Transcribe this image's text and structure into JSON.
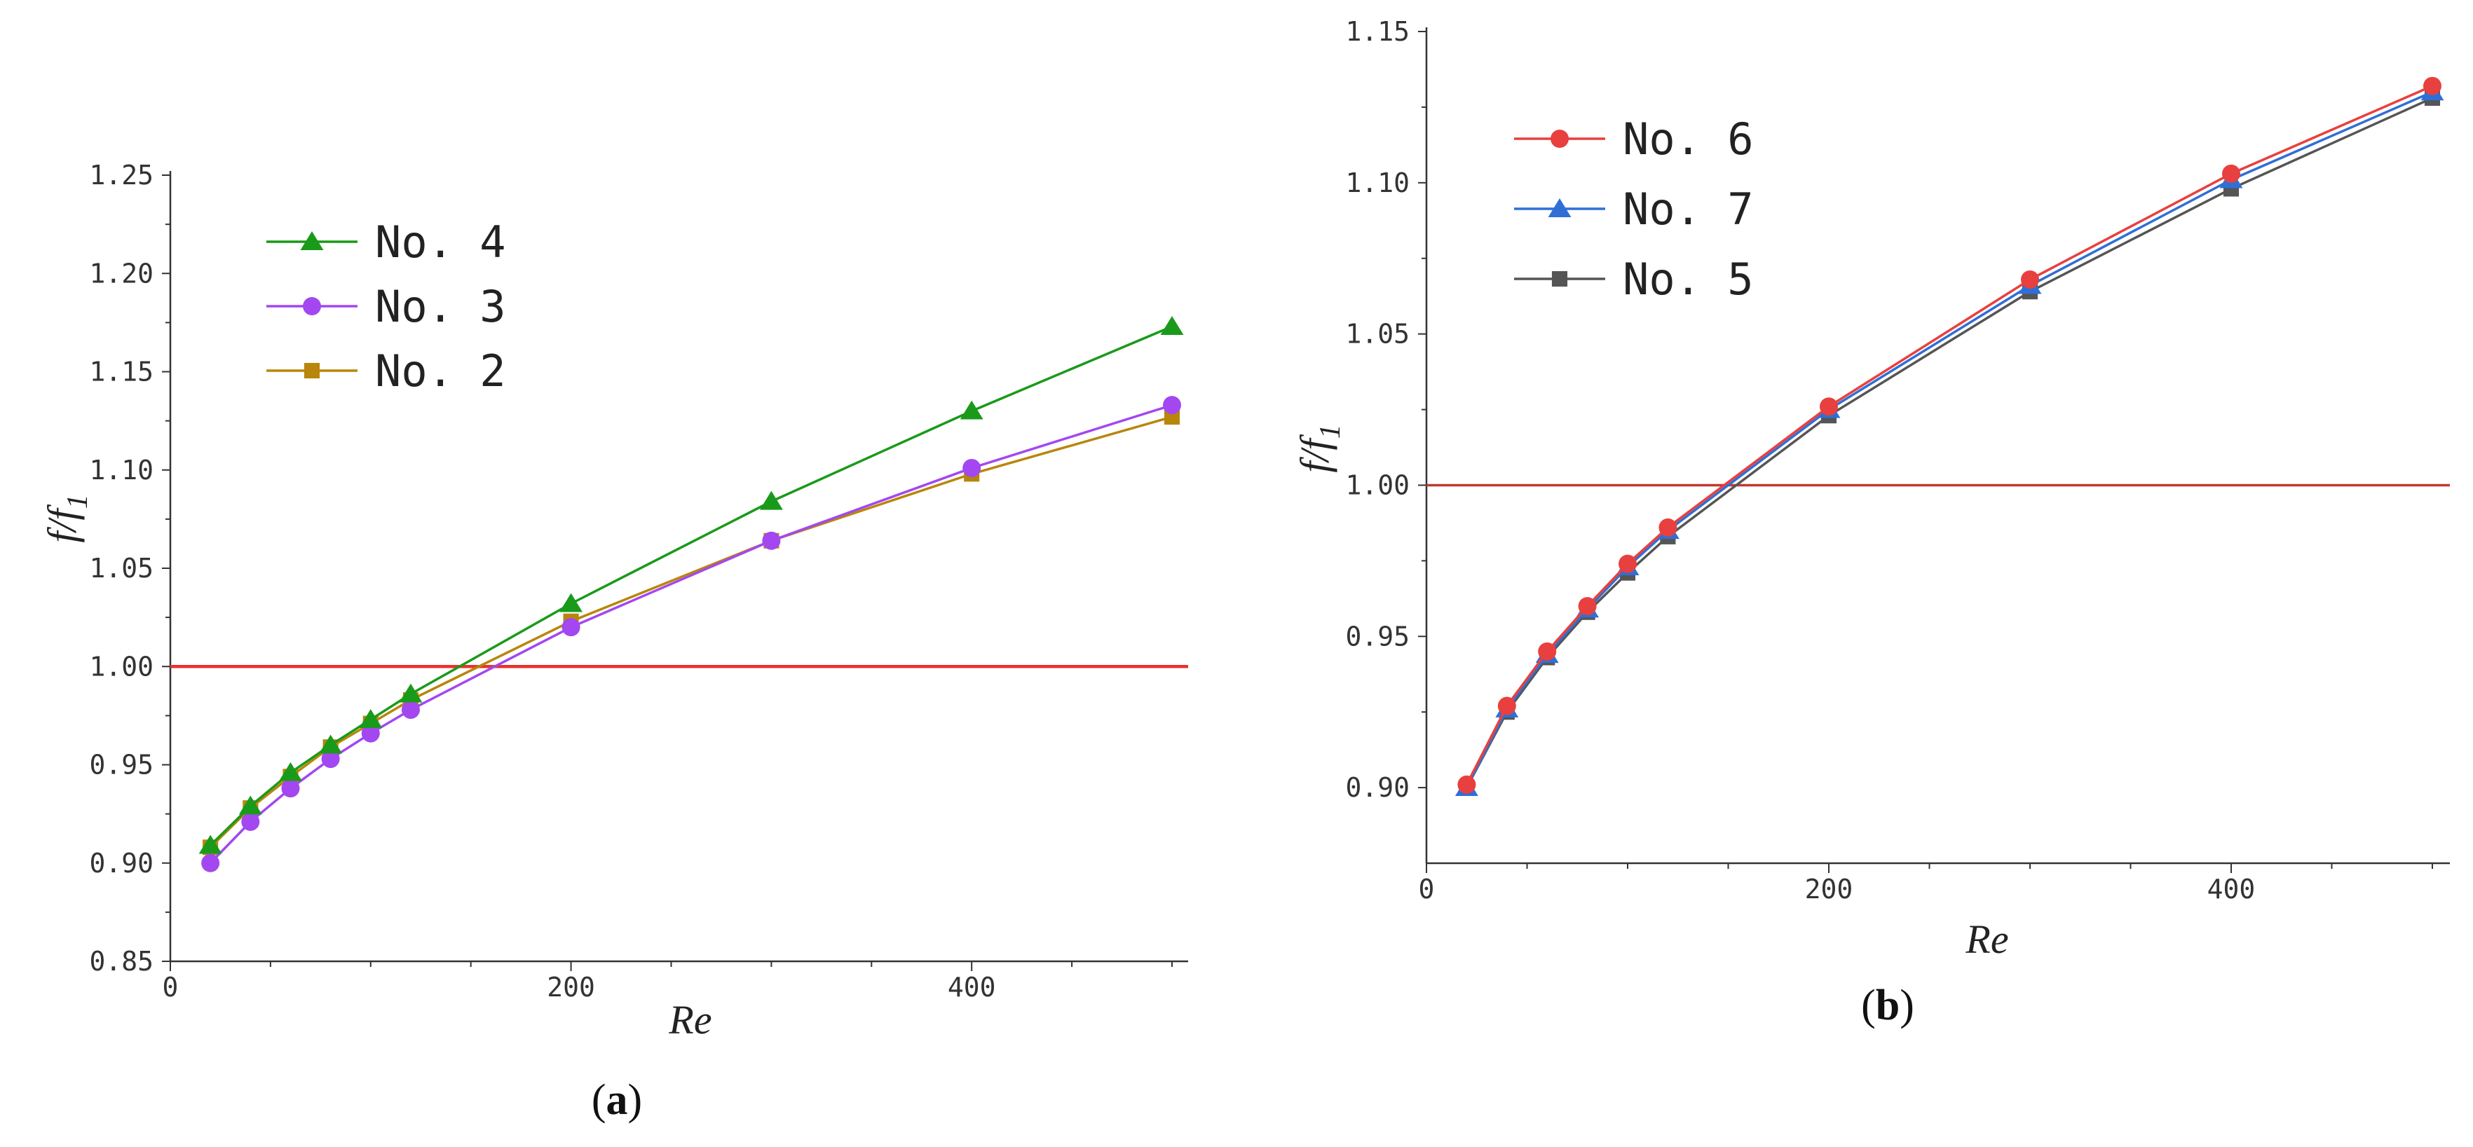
{
  "chart_data": [
    {
      "id": "a",
      "type": "line",
      "panel_label": "(a)",
      "panel_letter": "a",
      "xlabel": "Re",
      "ylabel_main": "f/f",
      "ylabel_sub": "1",
      "xlim": [
        0,
        500
      ],
      "ylim": [
        0.85,
        1.25
      ],
      "xticks": [
        "0",
        "200",
        "400"
      ],
      "xtick_values": [
        0,
        200,
        400
      ],
      "yticks": [
        "0.85",
        "0.90",
        "0.95",
        "1.00",
        "1.05",
        "1.10",
        "1.15",
        "1.20",
        "1.25"
      ],
      "ytick_values": [
        0.85,
        0.9,
        0.95,
        1.0,
        1.05,
        1.1,
        1.15,
        1.2,
        1.25
      ],
      "reference_line": {
        "y": 1.0,
        "color": "#e8322f"
      },
      "legend_position": "top-left",
      "series": [
        {
          "name": "No. 4",
          "color": "#1a9a1a",
          "marker": "triangle",
          "x": [
            20,
            40,
            60,
            80,
            100,
            120,
            200,
            300,
            400,
            500
          ],
          "y": [
            0.909,
            0.929,
            0.946,
            0.96,
            0.973,
            0.986,
            1.032,
            1.084,
            1.13,
            1.173
          ]
        },
        {
          "name": "No. 3",
          "color": "#a347f0",
          "marker": "circle",
          "x": [
            20,
            40,
            60,
            80,
            100,
            120,
            200,
            300,
            400,
            500
          ],
          "y": [
            0.9,
            0.921,
            0.938,
            0.953,
            0.966,
            0.978,
            1.02,
            1.064,
            1.101,
            1.133
          ]
        },
        {
          "name": "No. 2",
          "color": "#b8860b",
          "marker": "square",
          "x": [
            20,
            40,
            60,
            80,
            100,
            120,
            200,
            300,
            400,
            500
          ],
          "y": [
            0.908,
            0.928,
            0.944,
            0.959,
            0.971,
            0.983,
            1.023,
            1.064,
            1.098,
            1.127
          ]
        }
      ]
    },
    {
      "id": "b",
      "type": "line",
      "panel_label": "(b)",
      "panel_letter": "b",
      "xlabel": "Re",
      "ylabel_main": "f/f",
      "ylabel_sub": "1",
      "xlim": [
        0,
        510
      ],
      "ylim": [
        0.875,
        1.15
      ],
      "xticks": [
        "0",
        "200",
        "400"
      ],
      "xtick_values": [
        0,
        200,
        400
      ],
      "yticks": [
        "0.90",
        "0.95",
        "1.00",
        "1.05",
        "1.10",
        "1.15"
      ],
      "ytick_values": [
        0.9,
        0.95,
        1.0,
        1.05,
        1.1,
        1.15
      ],
      "reference_line": {
        "y": 1.0,
        "color": "#c0392b"
      },
      "legend_position": "top-left",
      "series": [
        {
          "name": "No. 6",
          "color": "#e8403e",
          "marker": "circle",
          "x": [
            20,
            40,
            60,
            80,
            100,
            120,
            200,
            300,
            400,
            500
          ],
          "y": [
            0.901,
            0.927,
            0.945,
            0.96,
            0.974,
            0.986,
            1.026,
            1.068,
            1.103,
            1.132
          ]
        },
        {
          "name": "No. 7",
          "color": "#2f6fd6",
          "marker": "triangle",
          "x": [
            20,
            40,
            60,
            80,
            100,
            120,
            200,
            300,
            400,
            500
          ],
          "y": [
            0.9,
            0.926,
            0.944,
            0.959,
            0.973,
            0.985,
            1.025,
            1.066,
            1.101,
            1.13
          ]
        },
        {
          "name": "No. 5",
          "color": "#555555",
          "marker": "square",
          "x": [
            20,
            40,
            60,
            80,
            100,
            120,
            200,
            300,
            400,
            500
          ],
          "y": [
            0.9,
            0.925,
            0.943,
            0.958,
            0.971,
            0.983,
            1.023,
            1.064,
            1.098,
            1.128
          ]
        }
      ]
    }
  ]
}
